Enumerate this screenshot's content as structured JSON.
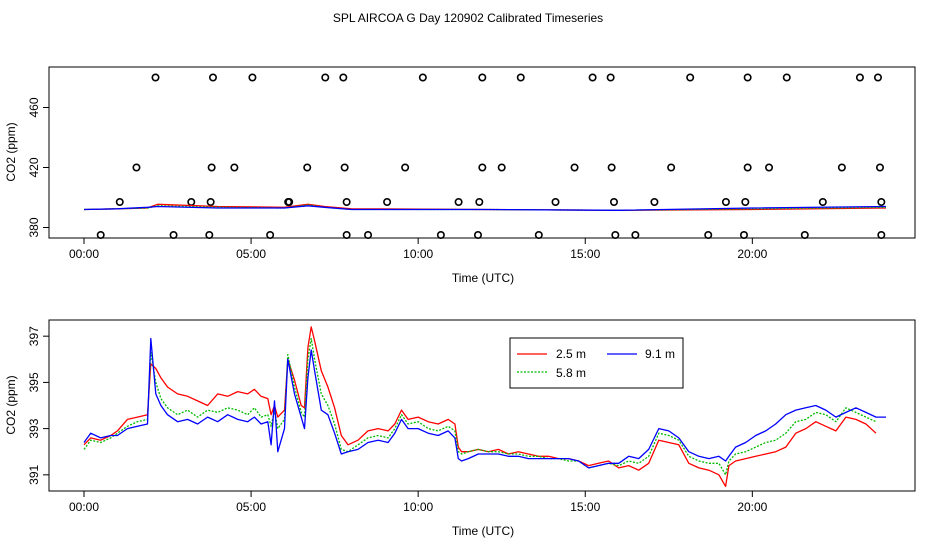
{
  "title": "SPL AIRCOA G  Day 120902  Calibrated Timeseries",
  "chart_data": [
    {
      "type": "scatter",
      "xlabel": "Time (UTC)",
      "ylabel": "CO2 (ppm)",
      "xlim": [
        0,
        24
      ],
      "ylim": [
        373,
        487
      ],
      "xticks": [
        0,
        5,
        10,
        15,
        20
      ],
      "xtick_labels": [
        "00:00",
        "05:00",
        "10:00",
        "15:00",
        "20:00"
      ],
      "yticks": [
        380,
        420,
        460
      ],
      "ytick_labels": [
        "380",
        "420",
        "460"
      ],
      "points": [
        {
          "x": 2.14,
          "y": 480
        },
        {
          "x": 3.86,
          "y": 480
        },
        {
          "x": 5.04,
          "y": 480
        },
        {
          "x": 7.22,
          "y": 480
        },
        {
          "x": 7.76,
          "y": 480
        },
        {
          "x": 10.14,
          "y": 480
        },
        {
          "x": 11.92,
          "y": 480
        },
        {
          "x": 13.07,
          "y": 480
        },
        {
          "x": 15.22,
          "y": 480
        },
        {
          "x": 15.76,
          "y": 480
        },
        {
          "x": 18.14,
          "y": 480
        },
        {
          "x": 19.86,
          "y": 480
        },
        {
          "x": 21.03,
          "y": 480
        },
        {
          "x": 23.22,
          "y": 480
        },
        {
          "x": 23.76,
          "y": 480
        },
        {
          "x": 1.57,
          "y": 420
        },
        {
          "x": 3.82,
          "y": 420
        },
        {
          "x": 4.5,
          "y": 420
        },
        {
          "x": 6.68,
          "y": 420
        },
        {
          "x": 7.8,
          "y": 420
        },
        {
          "x": 9.61,
          "y": 420
        },
        {
          "x": 11.92,
          "y": 420
        },
        {
          "x": 12.5,
          "y": 420
        },
        {
          "x": 14.68,
          "y": 420
        },
        {
          "x": 15.79,
          "y": 420
        },
        {
          "x": 17.57,
          "y": 420
        },
        {
          "x": 19.86,
          "y": 420
        },
        {
          "x": 20.5,
          "y": 420
        },
        {
          "x": 22.68,
          "y": 420
        },
        {
          "x": 23.82,
          "y": 420
        },
        {
          "x": 1.07,
          "y": 397
        },
        {
          "x": 3.21,
          "y": 397
        },
        {
          "x": 3.79,
          "y": 397
        },
        {
          "x": 6.11,
          "y": 397
        },
        {
          "x": 6.14,
          "y": 397
        },
        {
          "x": 7.86,
          "y": 397
        },
        {
          "x": 9.07,
          "y": 397
        },
        {
          "x": 11.21,
          "y": 397
        },
        {
          "x": 11.83,
          "y": 397
        },
        {
          "x": 14.11,
          "y": 397
        },
        {
          "x": 15.86,
          "y": 397
        },
        {
          "x": 17.07,
          "y": 397
        },
        {
          "x": 19.21,
          "y": 397
        },
        {
          "x": 19.79,
          "y": 397
        },
        {
          "x": 22.11,
          "y": 397
        },
        {
          "x": 23.86,
          "y": 397
        },
        {
          "x": 0.5,
          "y": 375
        },
        {
          "x": 2.68,
          "y": 375
        },
        {
          "x": 3.75,
          "y": 375
        },
        {
          "x": 5.57,
          "y": 375
        },
        {
          "x": 7.86,
          "y": 375
        },
        {
          "x": 8.5,
          "y": 375
        },
        {
          "x": 10.68,
          "y": 375
        },
        {
          "x": 11.79,
          "y": 375
        },
        {
          "x": 13.61,
          "y": 375
        },
        {
          "x": 15.9,
          "y": 375
        },
        {
          "x": 16.5,
          "y": 375
        },
        {
          "x": 18.68,
          "y": 375
        },
        {
          "x": 19.75,
          "y": 375
        },
        {
          "x": 21.57,
          "y": 375
        },
        {
          "x": 23.86,
          "y": 375
        }
      ],
      "series": [
        {
          "name": "2.5 m",
          "color": "#ff0000",
          "x": [
            0,
            1,
            1.9,
            2.2,
            4,
            6,
            6.7,
            7.2,
            8,
            12,
            16,
            20,
            24
          ],
          "y": [
            392,
            392.5,
            393,
            395.5,
            394,
            393.5,
            395.5,
            394,
            392.5,
            392,
            391.5,
            392,
            393
          ]
        },
        {
          "name": "5.8 m",
          "color": "#00bb00",
          "x": [
            0,
            1,
            1.9,
            2.2,
            4,
            6,
            6.7,
            7.2,
            8,
            12,
            16,
            20,
            24
          ],
          "y": [
            392,
            392.5,
            393,
            394.5,
            393.5,
            393,
            395,
            393.5,
            392,
            392,
            391.5,
            392.5,
            393.5
          ]
        },
        {
          "name": "9.1 m",
          "color": "#0000ff",
          "x": [
            0,
            1,
            1.9,
            2.2,
            4,
            6,
            6.7,
            7.2,
            8,
            12,
            16,
            20,
            24
          ],
          "y": [
            392,
            392.5,
            393.5,
            394,
            393,
            393,
            394.5,
            393.5,
            392,
            392,
            391.5,
            393,
            394
          ]
        }
      ]
    },
    {
      "type": "line",
      "xlabel": "Time (UTC)",
      "ylabel": "CO2 (ppm)",
      "xlim": [
        0,
        24
      ],
      "ylim": [
        390.3,
        397.7
      ],
      "xticks": [
        0,
        5,
        10,
        15,
        20
      ],
      "xtick_labels": [
        "00:00",
        "05:00",
        "10:00",
        "15:00",
        "20:00"
      ],
      "yticks": [
        391,
        393,
        395,
        397
      ],
      "ytick_labels": [
        "391",
        "393",
        "395",
        "397"
      ],
      "legend": {
        "position": "top-center",
        "entries": [
          "2.5 m",
          "9.1 m",
          "5.8 m"
        ]
      },
      "series": [
        {
          "name": "2.5 m",
          "color": "#ff0000",
          "x": [
            0.0,
            0.2,
            0.5,
            0.8,
            1.0,
            1.3,
            1.6,
            1.9,
            2.0,
            2.15,
            2.3,
            2.5,
            2.8,
            3.1,
            3.4,
            3.7,
            4.0,
            4.3,
            4.6,
            4.9,
            5.1,
            5.3,
            5.5,
            5.6,
            5.7,
            5.8,
            6.0,
            6.1,
            6.3,
            6.5,
            6.6,
            6.7,
            6.8,
            6.9,
            7.1,
            7.3,
            7.5,
            7.7,
            7.9,
            8.2,
            8.5,
            8.8,
            9.1,
            9.3,
            9.5,
            9.7,
            10.0,
            10.3,
            10.6,
            10.9,
            11.1,
            11.2,
            11.3,
            11.5,
            11.8,
            12.1,
            12.4,
            12.7,
            13.0,
            13.3,
            13.6,
            13.9,
            14.2,
            14.5,
            14.8,
            15.1,
            15.4,
            15.7,
            16.0,
            16.3,
            16.6,
            16.9,
            17.2,
            17.5,
            17.8,
            18.1,
            18.4,
            18.7,
            19.0,
            19.2,
            19.3,
            19.5,
            19.8,
            20.1,
            20.4,
            20.7,
            21.0,
            21.3,
            21.6,
            21.9,
            22.2,
            22.5,
            22.8,
            23.1,
            23.4,
            23.7
          ],
          "y": [
            392.3,
            392.6,
            392.5,
            392.7,
            392.9,
            393.4,
            393.5,
            393.6,
            395.8,
            395.6,
            395.2,
            394.8,
            394.5,
            394.4,
            394.2,
            394.0,
            394.5,
            394.4,
            394.6,
            394.5,
            394.7,
            394.4,
            394.3,
            393.6,
            394.0,
            393.5,
            393.8,
            396.0,
            395.1,
            394.0,
            393.9,
            396.5,
            397.4,
            396.8,
            395.5,
            394.8,
            393.9,
            392.7,
            392.3,
            392.5,
            392.9,
            393.0,
            392.9,
            393.2,
            393.8,
            393.4,
            393.5,
            393.3,
            393.2,
            393.4,
            393.2,
            392.2,
            392.0,
            392.0,
            392.1,
            392.0,
            392.1,
            391.9,
            392.0,
            391.9,
            391.8,
            391.8,
            391.7,
            391.7,
            391.6,
            391.4,
            391.5,
            391.6,
            391.3,
            391.4,
            391.2,
            391.5,
            392.5,
            392.4,
            392.3,
            391.5,
            391.3,
            391.2,
            391.0,
            390.5,
            391.4,
            391.6,
            391.7,
            391.8,
            391.9,
            392.0,
            392.2,
            392.8,
            393.0,
            393.3,
            393.1,
            392.9,
            393.5,
            393.4,
            393.2,
            392.8
          ]
        },
        {
          "name": "5.8 m",
          "color": "#00bb00",
          "x": [
            0.0,
            0.2,
            0.5,
            0.8,
            1.0,
            1.3,
            1.6,
            1.9,
            2.0,
            2.15,
            2.3,
            2.5,
            2.8,
            3.1,
            3.4,
            3.7,
            4.0,
            4.3,
            4.6,
            4.9,
            5.1,
            5.3,
            5.5,
            5.6,
            5.7,
            5.8,
            6.0,
            6.1,
            6.3,
            6.5,
            6.6,
            6.7,
            6.8,
            6.9,
            7.1,
            7.3,
            7.5,
            7.7,
            7.9,
            8.2,
            8.5,
            8.8,
            9.1,
            9.3,
            9.5,
            9.7,
            10.0,
            10.3,
            10.6,
            10.9,
            11.1,
            11.2,
            11.3,
            11.5,
            11.8,
            12.1,
            12.4,
            12.7,
            13.0,
            13.3,
            13.6,
            13.9,
            14.2,
            14.5,
            14.8,
            15.1,
            15.4,
            15.7,
            16.0,
            16.3,
            16.6,
            16.9,
            17.2,
            17.5,
            17.8,
            18.1,
            18.4,
            18.7,
            19.0,
            19.2,
            19.3,
            19.5,
            19.8,
            20.1,
            20.4,
            20.7,
            21.0,
            21.3,
            21.6,
            21.9,
            22.2,
            22.5,
            22.8,
            23.1,
            23.4,
            23.7
          ],
          "y": [
            392.1,
            392.5,
            392.4,
            392.6,
            392.8,
            393.1,
            393.3,
            393.4,
            396.3,
            395.0,
            394.3,
            393.9,
            393.6,
            393.8,
            393.5,
            393.8,
            393.7,
            393.9,
            393.8,
            393.6,
            393.9,
            393.5,
            393.6,
            393.1,
            393.8,
            393.0,
            393.4,
            396.2,
            394.8,
            393.7,
            393.5,
            396.0,
            396.9,
            396.0,
            394.5,
            394.0,
            393.2,
            392.1,
            392.0,
            392.3,
            392.6,
            392.7,
            392.6,
            393.0,
            393.6,
            393.2,
            393.3,
            393.0,
            392.9,
            393.1,
            392.9,
            392.0,
            391.9,
            392.0,
            392.1,
            392.0,
            392.0,
            391.9,
            391.9,
            391.8,
            391.8,
            391.7,
            391.7,
            391.6,
            391.6,
            391.3,
            391.4,
            391.5,
            391.4,
            391.6,
            391.5,
            391.8,
            392.8,
            392.7,
            392.5,
            391.8,
            391.6,
            391.5,
            391.5,
            391.0,
            391.6,
            391.9,
            392.0,
            392.2,
            392.4,
            392.5,
            392.8,
            393.3,
            393.4,
            393.7,
            393.6,
            393.3,
            393.9,
            393.7,
            393.5,
            393.3
          ]
        },
        {
          "name": "9.1 m",
          "color": "#0000ff",
          "x": [
            0.0,
            0.2,
            0.5,
            0.8,
            1.0,
            1.3,
            1.6,
            1.9,
            2.0,
            2.15,
            2.3,
            2.5,
            2.8,
            3.1,
            3.4,
            3.7,
            4.0,
            4.3,
            4.6,
            4.9,
            5.1,
            5.3,
            5.5,
            5.6,
            5.7,
            5.8,
            6.0,
            6.1,
            6.3,
            6.5,
            6.6,
            6.7,
            6.8,
            6.9,
            7.1,
            7.3,
            7.5,
            7.7,
            7.9,
            8.2,
            8.5,
            8.8,
            9.1,
            9.3,
            9.5,
            9.7,
            10.0,
            10.3,
            10.6,
            10.9,
            11.1,
            11.2,
            11.3,
            11.5,
            11.8,
            12.1,
            12.4,
            12.7,
            13.0,
            13.3,
            13.6,
            13.9,
            14.2,
            14.5,
            14.8,
            15.1,
            15.4,
            15.7,
            16.0,
            16.3,
            16.6,
            16.9,
            17.2,
            17.5,
            17.8,
            18.1,
            18.4,
            18.7,
            19.0,
            19.2,
            19.3,
            19.5,
            19.8,
            20.1,
            20.4,
            20.7,
            21.0,
            21.3,
            21.6,
            21.9,
            22.2,
            22.5,
            22.8,
            23.1,
            23.4,
            23.7,
            24.0
          ],
          "y": [
            392.4,
            392.8,
            392.6,
            392.7,
            392.7,
            393.0,
            393.1,
            393.2,
            396.9,
            394.5,
            394.0,
            393.6,
            393.3,
            393.4,
            393.2,
            393.5,
            393.3,
            393.6,
            393.4,
            393.3,
            393.5,
            393.2,
            393.3,
            392.3,
            394.2,
            392.0,
            393.0,
            396.0,
            394.5,
            393.5,
            393.0,
            395.2,
            396.4,
            395.5,
            393.8,
            393.6,
            392.8,
            391.9,
            392.0,
            392.1,
            392.4,
            392.5,
            392.4,
            392.8,
            393.4,
            393.0,
            393.0,
            392.8,
            392.7,
            392.9,
            392.6,
            391.7,
            391.6,
            391.7,
            391.9,
            391.9,
            391.9,
            391.8,
            391.8,
            391.7,
            391.7,
            391.7,
            391.7,
            391.7,
            391.6,
            391.3,
            391.4,
            391.5,
            391.5,
            391.8,
            391.7,
            392.1,
            393.0,
            392.9,
            392.6,
            392.0,
            391.8,
            391.7,
            391.8,
            391.6,
            391.8,
            392.2,
            392.4,
            392.7,
            392.9,
            393.2,
            393.6,
            393.8,
            393.9,
            394.0,
            393.8,
            393.5,
            393.7,
            393.9,
            393.7,
            393.5,
            393.5
          ]
        }
      ]
    }
  ]
}
